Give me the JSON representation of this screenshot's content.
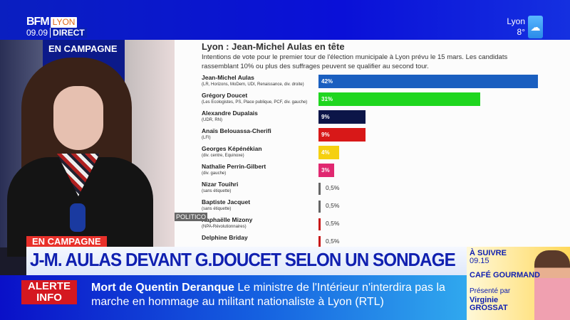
{
  "header": {
    "brand": "BFM",
    "city": "LYON",
    "time": "09.09",
    "live": "DIRECT",
    "weather": {
      "city": "Lyon",
      "temp": "8°",
      "icon": "cloud-icon"
    }
  },
  "studio": {
    "screen_text": "EN CAMPAGNE"
  },
  "chart_data": {
    "type": "bar",
    "orientation": "horizontal",
    "title": "Lyon : Jean-Michel Aulas en tête",
    "subtitle": "Intentions de vote pour le premier tour de l'élection municipale à Lyon prévu le 15 mars. Les candidats rassemblant 10% ou plus des suffrages peuvent se qualifier au second tour.",
    "candidates": [
      {
        "name": "Jean-Michel Aulas",
        "parties": "(LR, Horizons, MoDem, UDI, Renaissance, div. droite)",
        "value": 42,
        "label": "42%",
        "color": "#1a5fc0"
      },
      {
        "name": "Grégory Doucet",
        "parties": "(Les Ecologistes, PS, Place publique, PCF, div. gauche)",
        "value": 31,
        "label": "31%",
        "color": "#1fd61f"
      },
      {
        "name": "Alexandre Dupalais",
        "parties": "(UDR, RN)",
        "value": 9,
        "label": "9%",
        "color": "#0c1548"
      },
      {
        "name": "Anaïs Belouassa-Cherifi",
        "parties": "(LFI)",
        "value": 9,
        "label": "9%",
        "color": "#d81818"
      },
      {
        "name": "Georges Képénékian",
        "parties": "(div. centre, Equinoxe)",
        "value": 4,
        "label": "4%",
        "color": "#f5d010"
      },
      {
        "name": "Nathalie Perrin-Gilbert",
        "parties": "(div. gauche)",
        "value": 3,
        "label": "3%",
        "color": "#e02870"
      },
      {
        "name": "Nizar Touihri",
        "parties": "(sans étiquette)",
        "value": 0.5,
        "label": "0,5%",
        "color": "#666666"
      },
      {
        "name": "Baptiste Jacquet",
        "parties": "(sans étiquette)",
        "value": 0.5,
        "label": "0,5%",
        "color": "#666666"
      },
      {
        "name": "Raphaëlle Mizony",
        "parties": "(NPA-Révolutionnaires)",
        "value": 0.5,
        "label": "0,5%",
        "color": "#c81818"
      },
      {
        "name": "Delphine Briday",
        "parties": "",
        "value": 0.5,
        "label": "0,5%",
        "color": "#c81818"
      }
    ],
    "source": "POLITICO"
  },
  "lower_third": {
    "tag": "EN CAMPAGNE",
    "headline": "J-M. AULAS DEVANT G.DOUCET SELON UN SONDAGE"
  },
  "ticker": {
    "badge_line1": "ALERTE",
    "badge_line2": "INFO",
    "bold": "Mort de Quentin Deranque",
    "text": " Le ministre de l'Intérieur n'interdira pas la marche en hommage au militant nationaliste à Lyon  (RTL)"
  },
  "next": {
    "label": "À SUIVRE",
    "time": "09.15",
    "show": "CAFÉ GOURMAND",
    "presented": "Présenté par",
    "host1": "Virginie",
    "host2": "GROSSAT"
  }
}
